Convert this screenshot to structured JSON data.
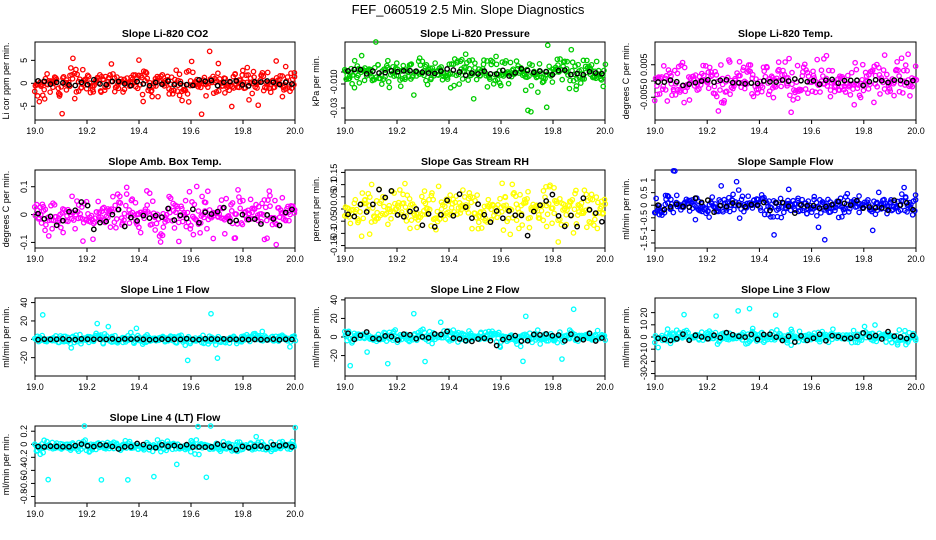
{
  "title": "FEF_060519  2.5 Min. Slope Diagnostics",
  "chart_data": [
    {
      "type": "scatter",
      "title": "Slope Li-820 CO2",
      "ylabel": "Li cor ppm per min.",
      "xlim": [
        19.0,
        20.0
      ],
      "ylim": [
        -8,
        9
      ],
      "xticks": [
        19.0,
        19.2,
        19.4,
        19.6,
        19.8,
        20.0
      ],
      "yticks": [
        -5,
        0,
        5
      ],
      "color": "#ff0000",
      "spread": 1.8,
      "outliers": 0.05,
      "outlier_range": 7,
      "black_spread": 0.5,
      "seed": 11
    },
    {
      "type": "scatter",
      "title": "Slope Li-820 Pressure",
      "ylabel": "kPa per min.",
      "xlim": [
        19.0,
        20.0
      ],
      "ylim": [
        -0.04,
        0.025
      ],
      "xticks": [
        19.0,
        19.2,
        19.4,
        19.6,
        19.8,
        20.0
      ],
      "yticks": [
        -0.03,
        -0.01,
        0.0
      ],
      "color": "#00cc00",
      "spread": 0.0075,
      "outliers": 0.05,
      "outlier_range": 0.035,
      "black_spread": 0.002,
      "seed": 23
    },
    {
      "type": "scatter",
      "title": "Slope Li-820 Temp.",
      "ylabel": "degrees C per min.",
      "xlim": [
        19.0,
        20.0
      ],
      "ylim": [
        -0.012,
        0.012
      ],
      "xticks": [
        19.0,
        19.2,
        19.4,
        19.6,
        19.8,
        20.0
      ],
      "yticks": [
        -0.005,
        0.0,
        0.005
      ],
      "color": "#ff00ff",
      "spread": 0.004,
      "outliers": 0.05,
      "outlier_range": 0.01,
      "black_spread": 0.0008,
      "seed": 37
    },
    {
      "type": "scatter",
      "title": "Slope Amb. Box Temp.",
      "ylabel": "degrees C per min.",
      "xlim": [
        19.0,
        20.0
      ],
      "ylim": [
        -0.12,
        0.16
      ],
      "xticks": [
        19.0,
        19.2,
        19.4,
        19.6,
        19.8,
        20.0
      ],
      "yticks": [
        -0.1,
        0.0,
        0.1
      ],
      "color": "#ff00ff",
      "spread": 0.04,
      "outliers": 0.03,
      "outlier_range": 0.12,
      "black_spread": 0.03,
      "seed": 41
    },
    {
      "type": "scatter",
      "title": "Slope Gas Stream RH",
      "ylabel": "percent per min.",
      "xlim": [
        19.0,
        20.0
      ],
      "ylim": [
        -0.16,
        0.16
      ],
      "xticks": [
        19.0,
        19.2,
        19.4,
        19.6,
        19.8,
        20.0
      ],
      "yticks": [
        -0.15,
        -0.1,
        -0.05,
        0.0,
        0.05,
        0.1,
        0.15
      ],
      "color": "#ffff00",
      "spread": 0.055,
      "outliers": 0.03,
      "outlier_range": 0.14,
      "black_spread": 0.06,
      "seed": 53
    },
    {
      "type": "scatter",
      "title": "Slope Sample Flow",
      "ylabel": "ml/min per min.",
      "xlim": [
        19.0,
        20.0
      ],
      "ylim": [
        -1.7,
        1.4
      ],
      "xticks": [
        19.0,
        19.2,
        19.4,
        19.6,
        19.8,
        20.0
      ],
      "yticks": [
        -1.5,
        -1.0,
        -0.5,
        0.0,
        0.5,
        1.0
      ],
      "color": "#0000ff",
      "spread": 0.25,
      "outliers": 0.04,
      "outlier_range": 1.4,
      "black_spread": 0.25,
      "seed": 67
    },
    {
      "type": "scatter",
      "title": "Slope Line 1 Flow",
      "ylabel": "ml/min per min.",
      "xlim": [
        19.0,
        20.0
      ],
      "ylim": [
        -40,
        45
      ],
      "xticks": [
        19.0,
        19.2,
        19.4,
        19.6,
        19.8,
        20.0
      ],
      "yticks": [
        -20,
        0,
        20,
        40
      ],
      "color": "#00ffff",
      "spread": 3,
      "outliers": 0.05,
      "outlier_range": 35,
      "black_spread": 0.5,
      "seed": 71
    },
    {
      "type": "scatter",
      "title": "Slope Line 2 Flow",
      "ylabel": "ml/min per min.",
      "xlim": [
        19.0,
        20.0
      ],
      "ylim": [
        -42,
        42
      ],
      "xticks": [
        19.0,
        19.2,
        19.4,
        19.6,
        19.8,
        20.0
      ],
      "yticks": [
        -20,
        0,
        20,
        40
      ],
      "color": "#00ffff",
      "spread": 4,
      "outliers": 0.05,
      "outlier_range": 32,
      "black_spread": 5,
      "seed": 83
    },
    {
      "type": "scatter",
      "title": "Slope Line 3 Flow",
      "ylabel": "ml/min per min.",
      "xlim": [
        19.0,
        20.0
      ],
      "ylim": [
        -32,
        32
      ],
      "xticks": [
        19.0,
        19.2,
        19.4,
        19.6,
        19.8,
        20.0
      ],
      "yticks": [
        -30,
        -20,
        -10,
        0,
        10,
        20
      ],
      "color": "#00ffff",
      "spread": 3,
      "outliers": 0.05,
      "outlier_range": 27,
      "black_spread": 3,
      "seed": 97
    },
    {
      "type": "scatter",
      "title": "Slope Line 4 (LT) Flow",
      "ylabel": "ml/min per min.",
      "xlim": [
        19.0,
        20.0
      ],
      "ylim": [
        -0.9,
        0.28
      ],
      "xticks": [
        19.0,
        19.2,
        19.4,
        19.6,
        19.8,
        20.0
      ],
      "yticks": [
        -0.8,
        -0.6,
        -0.4,
        -0.2,
        0.0,
        0.2
      ],
      "color": "#00ffff",
      "spread": 0.05,
      "outliers": 0.03,
      "outlier_range": 0.6,
      "black_spread": 0.03,
      "center": -0.03,
      "seed": 101
    }
  ]
}
